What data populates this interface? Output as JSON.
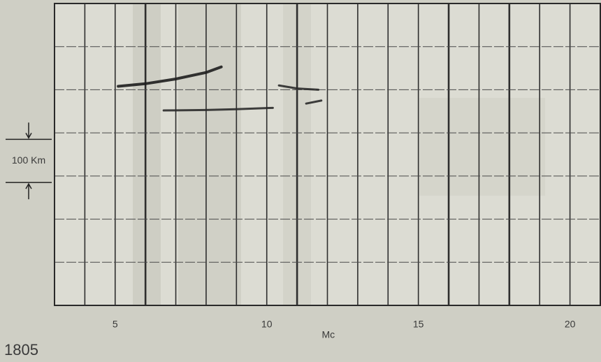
{
  "chart_data": {
    "type": "ionogram",
    "x_label": "Mc",
    "figure_label": "1805",
    "xlim": [
      3,
      21
    ],
    "xticks": [
      5,
      10,
      15,
      20
    ],
    "ylim": [
      0,
      700
    ],
    "xgrid": [
      4,
      5,
      6,
      7,
      8,
      9,
      10,
      11,
      12,
      13,
      14,
      15,
      16,
      17,
      18,
      19,
      20
    ],
    "ygrid": [
      100,
      200,
      300,
      400,
      500,
      600
    ],
    "scale_bar": {
      "label": "100 Km",
      "base": 285,
      "length": 100
    },
    "series": [
      {
        "color": "#1e1e1e",
        "x": [
          5.1,
          6,
          7,
          8,
          8.5
        ],
        "values": [
          508,
          514,
          525,
          540,
          553
        ]
      },
      {
        "color": "#2a2a2a",
        "x": [
          6.6,
          8,
          9,
          10.2
        ],
        "values": [
          452,
          453,
          455,
          458
        ]
      },
      {
        "color": "#2a2a2a",
        "x": [
          10.4,
          11,
          11.7
        ],
        "values": [
          510,
          503,
          500
        ]
      },
      {
        "color": "#2a2a2a",
        "x": [
          11.3,
          11.8
        ],
        "values": [
          468,
          475
        ]
      }
    ]
  }
}
